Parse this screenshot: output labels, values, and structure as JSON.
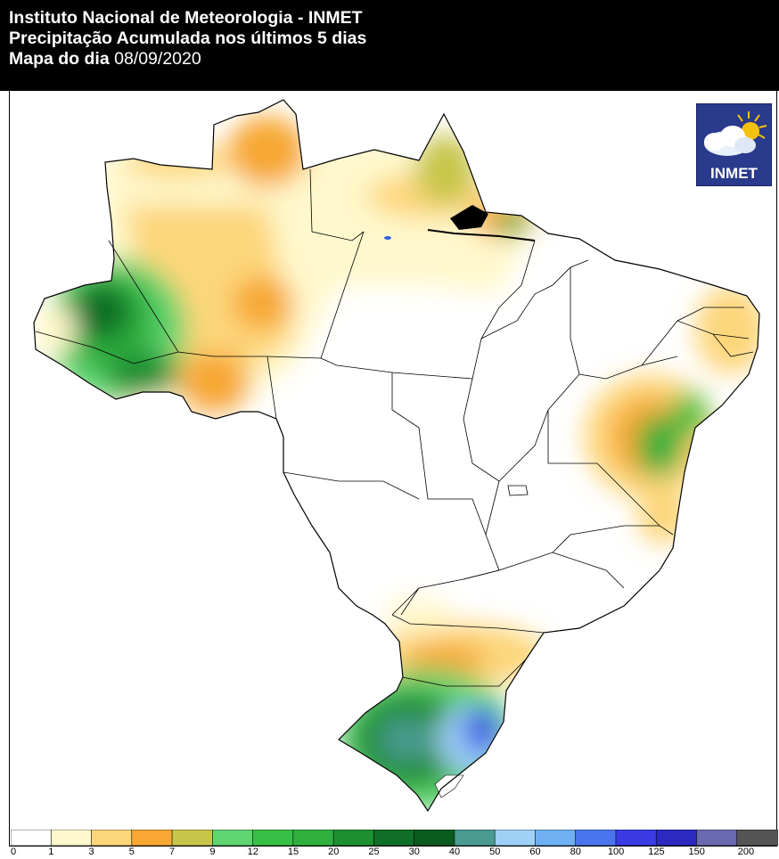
{
  "header": {
    "line1": "Instituto Nacional de Meteorologia - INMET",
    "line2": "Precipitação Acumulada nos últimos 5 dias",
    "line3_label": "Mapa do dia",
    "line3_date": "08/09/2020"
  },
  "logo": {
    "text": "INMET",
    "icon": "cloud-sun-icon"
  },
  "map": {
    "region": "Brazil",
    "variable": "accumulated precipitation (mm), last 5 days"
  },
  "legend": {
    "ticks": [
      "0",
      "1",
      "3",
      "5",
      "7",
      "9",
      "12",
      "15",
      "20",
      "25",
      "30",
      "40",
      "50",
      "60",
      "80",
      "100",
      "125",
      "150",
      "200"
    ],
    "colors": [
      "#ffffff",
      "#fff8cc",
      "#fdd67a",
      "#f7a732",
      "#c8c64a",
      "#5fd470",
      "#36c045",
      "#2fb03e",
      "#1d8f31",
      "#0f6e27",
      "#0b5a20",
      "#4a9a90",
      "#9fd0f5",
      "#6eb0f2",
      "#4a75ee",
      "#3a3be5",
      "#2a2ac0",
      "#6a6ab0",
      "#555555"
    ]
  }
}
